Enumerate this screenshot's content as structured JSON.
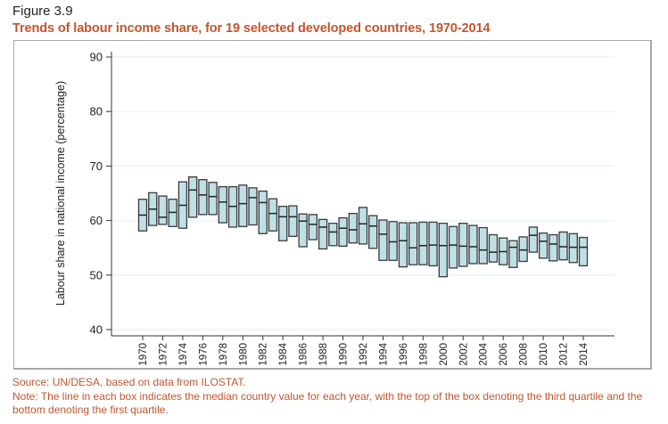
{
  "figure_label": "Figure 3.9",
  "colors": {
    "title": "#c0562e",
    "box_fill": "#bfe0e6",
    "box_stroke": "#3a3a3a",
    "gridline": "#eaf3f5"
  },
  "footer": {
    "source": "Source: UN/DESA, based on data from ILOSTAT.",
    "note": "Note: The line in each box indicates the median country value for each year, with the top of the box denoting the third quartile and the bottom denoting the first quartile."
  },
  "chart_data": {
    "type": "box",
    "title": "Trends of labour income share, for 19 selected developed countries, 1970-2014",
    "xlabel": "",
    "ylabel": "Labour share in national income (percentage)",
    "ylim": [
      40,
      90
    ],
    "yticks": [
      40,
      50,
      60,
      70,
      80,
      90
    ],
    "grid": true,
    "xtick_labels": [
      "1970",
      "1972",
      "1974",
      "1976",
      "1978",
      "1980",
      "1982",
      "1984",
      "1986",
      "1988",
      "1990",
      "1992",
      "1994",
      "1996",
      "1998",
      "2000",
      "2002",
      "2004",
      "2006",
      "2008",
      "2010",
      "2012",
      "2014"
    ],
    "categories": [
      1970,
      1971,
      1972,
      1973,
      1974,
      1975,
      1976,
      1977,
      1978,
      1979,
      1980,
      1981,
      1982,
      1983,
      1984,
      1985,
      1986,
      1987,
      1988,
      1989,
      1990,
      1991,
      1992,
      1993,
      1994,
      1995,
      1996,
      1997,
      1998,
      1999,
      2000,
      2001,
      2002,
      2003,
      2004,
      2005,
      2006,
      2007,
      2008,
      2009,
      2010,
      2011,
      2012,
      2013,
      2014
    ],
    "series": [
      {
        "name": "Third quartile",
        "values": [
          63.9,
          65.1,
          64.5,
          63.9,
          67.1,
          68.0,
          67.5,
          67.0,
          66.2,
          66.2,
          66.5,
          66.0,
          65.4,
          64.0,
          62.6,
          62.7,
          61.2,
          61.1,
          60.2,
          59.5,
          60.5,
          61.3,
          62.4,
          60.9,
          60.1,
          59.8,
          59.6,
          59.6,
          59.7,
          59.7,
          59.5,
          58.9,
          59.5,
          59.1,
          58.7,
          57.4,
          56.8,
          56.3,
          57.0,
          58.8,
          57.7,
          57.4,
          57.9,
          57.6,
          56.9
        ]
      },
      {
        "name": "Median",
        "values": [
          61.0,
          62.1,
          60.6,
          61.5,
          62.8,
          65.6,
          64.7,
          64.4,
          63.4,
          62.6,
          63.1,
          64.2,
          63.3,
          61.3,
          60.7,
          60.7,
          59.9,
          59.3,
          58.8,
          57.9,
          58.6,
          58.3,
          59.4,
          59.0,
          57.5,
          56.1,
          56.3,
          55.0,
          55.4,
          55.5,
          55.4,
          55.5,
          55.3,
          55.2,
          54.6,
          54.2,
          54.3,
          55.1,
          54.6,
          57.3,
          56.2,
          55.7,
          55.2,
          55.1,
          55.1
        ]
      },
      {
        "name": "First quartile",
        "values": [
          58.1,
          59.1,
          59.3,
          58.9,
          58.6,
          60.6,
          61.1,
          61.1,
          59.6,
          58.8,
          58.9,
          59.2,
          57.6,
          58.1,
          56.3,
          57.1,
          55.2,
          56.5,
          54.8,
          55.4,
          55.3,
          55.9,
          55.7,
          54.9,
          52.7,
          52.7,
          51.5,
          51.9,
          51.9,
          51.7,
          49.7,
          51.3,
          51.6,
          52.1,
          52.1,
          52.4,
          51.9,
          51.4,
          52.5,
          54.2,
          53.1,
          52.6,
          52.8,
          52.3,
          51.7
        ]
      }
    ]
  }
}
